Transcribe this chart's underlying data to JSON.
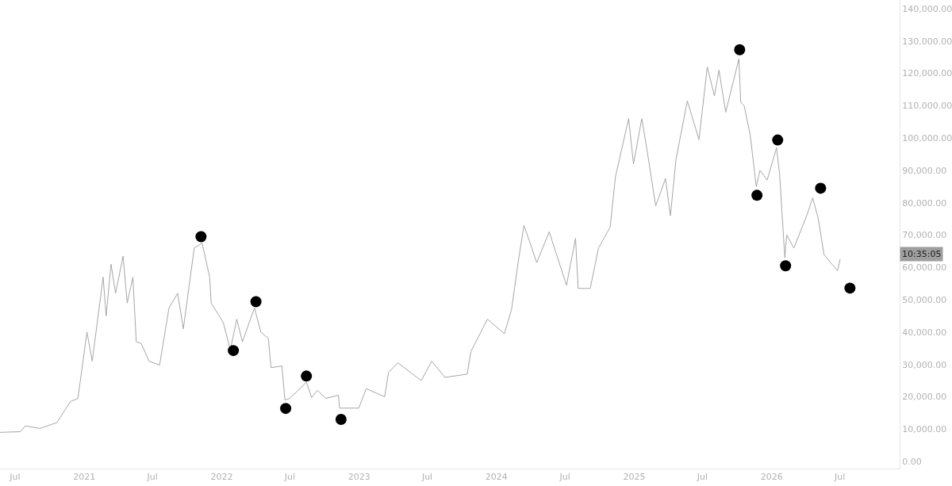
{
  "chart_data": {
    "type": "line",
    "xlim": [
      "2020-05-22",
      "2026-12-07"
    ],
    "ylim": [
      -2200,
      142700
    ],
    "xticks": [
      {
        "value": "2020-07-01",
        "label": "Jul"
      },
      {
        "value": "2021-01-01",
        "label": "2021"
      },
      {
        "value": "2021-07-01",
        "label": "Jul"
      },
      {
        "value": "2022-01-01",
        "label": "2022"
      },
      {
        "value": "2022-07-01",
        "label": "Jul"
      },
      {
        "value": "2023-01-01",
        "label": "2023"
      },
      {
        "value": "2023-07-01",
        "label": "Jul"
      },
      {
        "value": "2024-01-01",
        "label": "2024"
      },
      {
        "value": "2024-07-01",
        "label": "Jul"
      },
      {
        "value": "2025-01-01",
        "label": "2025"
      },
      {
        "value": "2025-07-01",
        "label": "Jul"
      },
      {
        "value": "2026-01-01",
        "label": "2026"
      },
      {
        "value": "2026-07-01",
        "label": "Jul"
      }
    ],
    "yticks": [
      {
        "value": 0,
        "label": "0.00"
      },
      {
        "value": 10000,
        "label": "10,000.00"
      },
      {
        "value": 20000,
        "label": "20,000.00"
      },
      {
        "value": 30000,
        "label": "30,000.00"
      },
      {
        "value": 40000,
        "label": "40,000.00"
      },
      {
        "value": 50000,
        "label": "50,000.00"
      },
      {
        "value": 60000,
        "label": "60,000.00"
      },
      {
        "value": 70000,
        "label": "70,000.00"
      },
      {
        "value": 80000,
        "label": "80,000.00"
      },
      {
        "value": 90000,
        "label": "90,000.00"
      },
      {
        "value": 100000,
        "label": "100,000.00"
      },
      {
        "value": 110000,
        "label": "110,000.00"
      },
      {
        "value": 120000,
        "label": "120,000.00"
      },
      {
        "value": 130000,
        "label": "130,000.00"
      },
      {
        "value": 140000,
        "label": "140,000.00"
      }
    ],
    "annotations": [
      "10:35:05"
    ],
    "series": [
      {
        "color": "#a6a6a6",
        "marker": "none",
        "line_style": "solid",
        "x": [
          "2020-05-22",
          "2020-07-15",
          "2020-07-28",
          "2020-09-05",
          "2020-10-20",
          "2020-11-25",
          "2020-12-15",
          "2021-01-08",
          "2021-01-22",
          "2021-02-20",
          "2021-02-28",
          "2021-03-13",
          "2021-03-25",
          "2021-04-14",
          "2021-04-25",
          "2021-05-10",
          "2021-05-19",
          "2021-06-01",
          "2021-06-22",
          "2021-07-20",
          "2021-08-14",
          "2021-09-06",
          "2021-09-21",
          "2021-10-20",
          "2021-11-10",
          "2021-11-30",
          "2021-12-04",
          "2022-01-05",
          "2022-01-24",
          "2022-02-10",
          "2022-02-25",
          "2022-03-29",
          "2022-04-15",
          "2022-05-05",
          "2022-05-12",
          "2022-06-10",
          "2022-06-18",
          "2022-07-01",
          "2022-08-14",
          "2022-08-28",
          "2022-09-12",
          "2022-10-05",
          "2022-11-07",
          "2022-11-10",
          "2022-12-31",
          "2023-01-20",
          "2023-03-10",
          "2023-03-20",
          "2023-04-14",
          "2023-06-15",
          "2023-07-13",
          "2023-08-17",
          "2023-10-15",
          "2023-10-25",
          "2023-12-08",
          "2024-01-22",
          "2024-02-10",
          "2024-02-28",
          "2024-03-14",
          "2024-04-17",
          "2024-05-20",
          "2024-07-05",
          "2024-07-29",
          "2024-08-05",
          "2024-09-06",
          "2024-09-28",
          "2024-10-29",
          "2024-11-12",
          "2024-12-17",
          "2024-12-30",
          "2025-01-21",
          "2025-02-03",
          "2025-02-27",
          "2025-03-25",
          "2025-04-07",
          "2025-04-22",
          "2025-05-22",
          "2025-06-22",
          "2025-07-14",
          "2025-08-02",
          "2025-08-14",
          "2025-09-01",
          "2025-10-06",
          "2025-10-11",
          "2025-10-20",
          "2025-11-05",
          "2025-11-21",
          "2025-12-01",
          "2025-12-20",
          "2026-01-14",
          "2026-01-22",
          "2026-02-05",
          "2026-02-10",
          "2026-03-01",
          "2026-04-04",
          "2026-04-20",
          "2026-05-05",
          "2026-05-20",
          "2026-06-10",
          "2026-06-25",
          "2026-07-02"
        ],
        "values": [
          9000,
          9200,
          11000,
          10200,
          12000,
          18500,
          19500,
          40000,
          31000,
          57000,
          45000,
          61000,
          52000,
          63500,
          49000,
          57000,
          37000,
          36500,
          31000,
          29800,
          47500,
          52000,
          41000,
          66000,
          67500,
          57000,
          49000,
          43000,
          34500,
          44000,
          37000,
          47500,
          40000,
          38000,
          29000,
          29500,
          19000,
          19500,
          24500,
          19800,
          22000,
          19500,
          20500,
          16500,
          16500,
          22500,
          20000,
          27500,
          30500,
          25000,
          31000,
          26000,
          27000,
          34000,
          44000,
          39500,
          47000,
          62000,
          73000,
          61500,
          71000,
          54500,
          69000,
          53500,
          53500,
          66000,
          72500,
          88000,
          106000,
          92000,
          106000,
          97000,
          79000,
          87500,
          76000,
          93500,
          111500,
          99500,
          122000,
          113000,
          121000,
          108000,
          124500,
          111000,
          110000,
          101000,
          85000,
          90000,
          87000,
          97000,
          89000,
          63000,
          70000,
          66000,
          76000,
          81500,
          75000,
          64000,
          61000,
          59000,
          62500
        ]
      },
      {
        "type": "scatter",
        "color": "#000000",
        "marker": "circle",
        "x": [
          "2021-11-07",
          "2022-02-01",
          "2022-04-02",
          "2022-06-20",
          "2022-08-14",
          "2022-11-14",
          "2025-10-08",
          "2025-11-23",
          "2026-01-17",
          "2026-02-07",
          "2026-05-11",
          "2026-07-28"
        ],
        "values": [
          69500,
          34300,
          49400,
          16400,
          26400,
          13000,
          127300,
          82300,
          99400,
          60500,
          84500,
          53600
        ]
      }
    ]
  }
}
